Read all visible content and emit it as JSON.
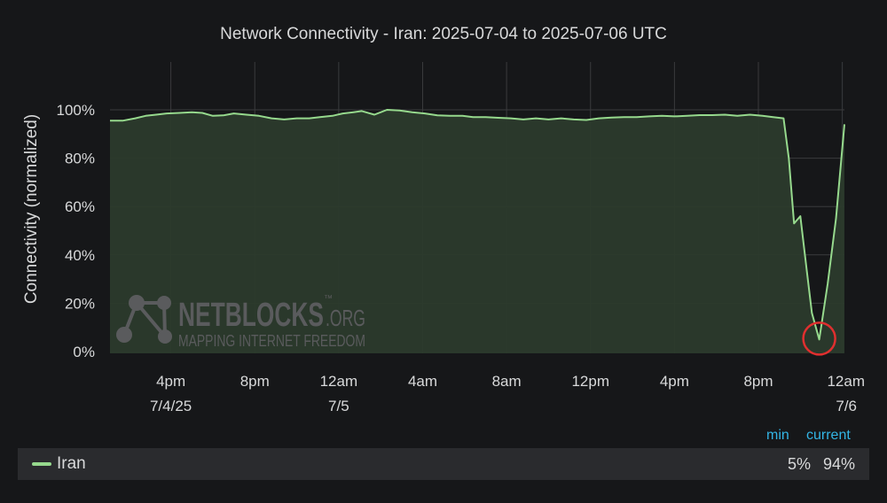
{
  "colors": {
    "background": "#161719",
    "plot_bg": "#161719",
    "grid": "#3a3b3d",
    "series_line": "#96d98d",
    "series_fill": "#2b3a2c",
    "text": "#d8d9da",
    "legend_header": "#33b5e5",
    "legend_bar": "#2a2b2e",
    "highlight_circle": "#e02f2f",
    "watermark": "#5a5b5d"
  },
  "watermark": {
    "brand": "NETBLOCKS",
    "tld": ".ORG",
    "tm": "™",
    "tagline": "MAPPING INTERNET FREEDOM"
  },
  "legend": {
    "min_header": "min",
    "current_header": "current",
    "series_name": "Iran",
    "min_value": "5%",
    "current_value": "94%"
  },
  "chart_data": {
    "type": "area",
    "title": "Network Connectivity - Iran: 2025-07-04 to 2025-07-06 UTC",
    "ylabel": "Connectivity (normalized)",
    "xlabel": "",
    "ylim": [
      0,
      100
    ],
    "y_ticks": [
      0,
      20,
      40,
      60,
      80,
      100
    ],
    "y_tick_labels": [
      "0%",
      "20%",
      "40%",
      "60%",
      "80%",
      "100%"
    ],
    "xlim": [
      13.0,
      48.0
    ],
    "x_ticks": [
      {
        "x": 15.9,
        "line1": "4pm",
        "line2": "7/4/25"
      },
      {
        "x": 19.9,
        "line1": "8pm",
        "line2": ""
      },
      {
        "x": 23.9,
        "line1": "12am",
        "line2": "7/5"
      },
      {
        "x": 27.9,
        "line1": "4am",
        "line2": ""
      },
      {
        "x": 31.9,
        "line1": "8am",
        "line2": ""
      },
      {
        "x": 35.9,
        "line1": "12pm",
        "line2": ""
      },
      {
        "x": 39.9,
        "line1": "4pm",
        "line2": ""
      },
      {
        "x": 43.9,
        "line1": "8pm",
        "line2": ""
      },
      {
        "x": 47.9,
        "line1": "12am",
        "line2": "7/6"
      }
    ],
    "grid": true,
    "legend_position": "bottom",
    "annotation": {
      "type": "circle",
      "x": 46.8,
      "y": 5
    },
    "series": [
      {
        "name": "Iran",
        "points": [
          [
            13.0,
            95.5
          ],
          [
            13.6,
            95.5
          ],
          [
            14.2,
            96.5
          ],
          [
            14.7,
            97.5
          ],
          [
            15.2,
            98.0
          ],
          [
            15.7,
            98.5
          ],
          [
            16.3,
            98.7
          ],
          [
            16.9,
            99.0
          ],
          [
            17.4,
            98.7
          ],
          [
            17.9,
            97.5
          ],
          [
            18.4,
            97.7
          ],
          [
            18.9,
            98.5
          ],
          [
            19.5,
            98.0
          ],
          [
            20.1,
            97.5
          ],
          [
            20.7,
            96.5
          ],
          [
            21.3,
            96.0
          ],
          [
            21.9,
            96.5
          ],
          [
            22.5,
            96.5
          ],
          [
            23.0,
            97.0
          ],
          [
            23.6,
            97.5
          ],
          [
            24.1,
            98.5
          ],
          [
            24.6,
            99.0
          ],
          [
            25.0,
            99.5
          ],
          [
            25.6,
            98.0
          ],
          [
            26.2,
            100.0
          ],
          [
            26.8,
            99.7
          ],
          [
            27.4,
            99.0
          ],
          [
            28.0,
            98.5
          ],
          [
            28.6,
            97.7
          ],
          [
            29.2,
            97.5
          ],
          [
            29.8,
            97.5
          ],
          [
            30.3,
            97.0
          ],
          [
            30.9,
            97.0
          ],
          [
            31.5,
            96.7
          ],
          [
            32.1,
            96.5
          ],
          [
            32.7,
            96.0
          ],
          [
            33.3,
            96.5
          ],
          [
            33.9,
            96.0
          ],
          [
            34.5,
            96.5
          ],
          [
            35.1,
            96.0
          ],
          [
            35.7,
            95.8
          ],
          [
            36.3,
            96.5
          ],
          [
            36.9,
            96.8
          ],
          [
            37.5,
            97.0
          ],
          [
            38.1,
            97.0
          ],
          [
            38.7,
            97.3
          ],
          [
            39.3,
            97.5
          ],
          [
            39.9,
            97.3
          ],
          [
            40.5,
            97.5
          ],
          [
            41.1,
            97.8
          ],
          [
            41.7,
            97.8
          ],
          [
            42.3,
            98.0
          ],
          [
            42.9,
            97.5
          ],
          [
            43.5,
            98.0
          ],
          [
            44.1,
            97.5
          ],
          [
            44.6,
            97.0
          ],
          [
            45.1,
            96.5
          ],
          [
            45.35,
            80.0
          ],
          [
            45.6,
            53.0
          ],
          [
            45.9,
            56.0
          ],
          [
            46.2,
            34.0
          ],
          [
            46.45,
            16.0
          ],
          [
            46.8,
            5.0
          ],
          [
            47.2,
            28.0
          ],
          [
            47.6,
            55.0
          ],
          [
            48.0,
            94.0
          ]
        ]
      }
    ]
  }
}
